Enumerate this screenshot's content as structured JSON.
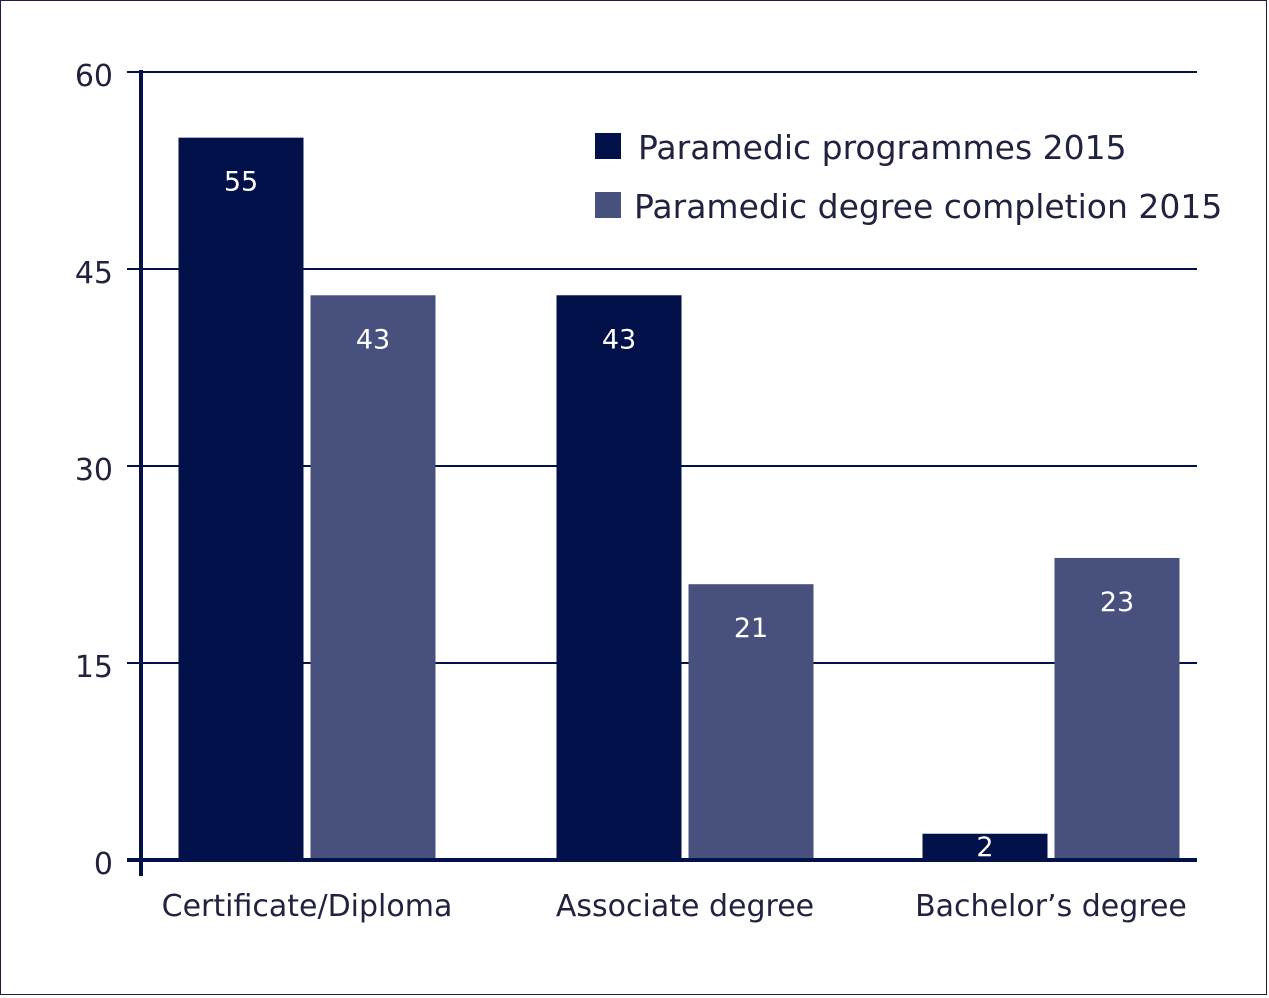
{
  "chart_data": {
    "type": "bar",
    "categories": [
      "Certificate/Diploma",
      "Associate degree",
      "Bachelor’s degree"
    ],
    "series": [
      {
        "name": "Paramedic programmes 2015",
        "values": [
          55,
          43,
          2
        ],
        "color": "#03114a"
      },
      {
        "name": "Paramedic degree completion 2015",
        "values": [
          43,
          21,
          23
        ],
        "color": "#48517d"
      }
    ],
    "yticks": [
      0,
      15,
      30,
      45,
      60
    ],
    "ylim": [
      0,
      60
    ],
    "grid": true,
    "legend_position": "top-right",
    "colors": {
      "axis": "#03114a",
      "text": "#1f2340",
      "label_text": "#ffffff"
    }
  }
}
